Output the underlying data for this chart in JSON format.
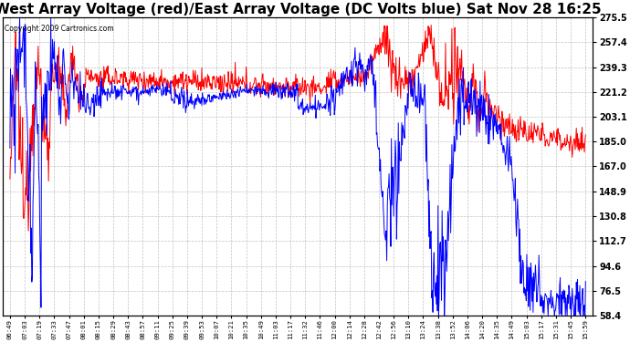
{
  "title": "West Array Voltage (red)/East Array Voltage (DC Volts blue) Sat Nov 28 16:25",
  "copyright": "Copyright 2009 Cartronics.com",
  "ylim": [
    58.4,
    275.5
  ],
  "yticks": [
    58.4,
    76.5,
    94.6,
    112.7,
    130.8,
    148.9,
    167.0,
    185.0,
    203.1,
    221.2,
    239.3,
    257.4,
    275.5
  ],
  "background_color": "#ffffff",
  "grid_color": "#bbbbbb",
  "line_color_red": "#ff0000",
  "line_color_blue": "#0000ff",
  "title_fontsize": 11,
  "x_labels": [
    "06:49",
    "07:03",
    "07:19",
    "07:33",
    "07:47",
    "08:01",
    "08:15",
    "08:29",
    "08:43",
    "08:57",
    "09:11",
    "09:25",
    "09:39",
    "09:53",
    "10:07",
    "10:21",
    "10:35",
    "10:49",
    "11:03",
    "11:17",
    "11:32",
    "11:46",
    "12:00",
    "12:14",
    "12:28",
    "12:42",
    "12:56",
    "13:10",
    "13:24",
    "13:38",
    "13:52",
    "14:06",
    "14:20",
    "14:35",
    "14:49",
    "15:03",
    "15:17",
    "15:31",
    "15:45",
    "15:59"
  ]
}
